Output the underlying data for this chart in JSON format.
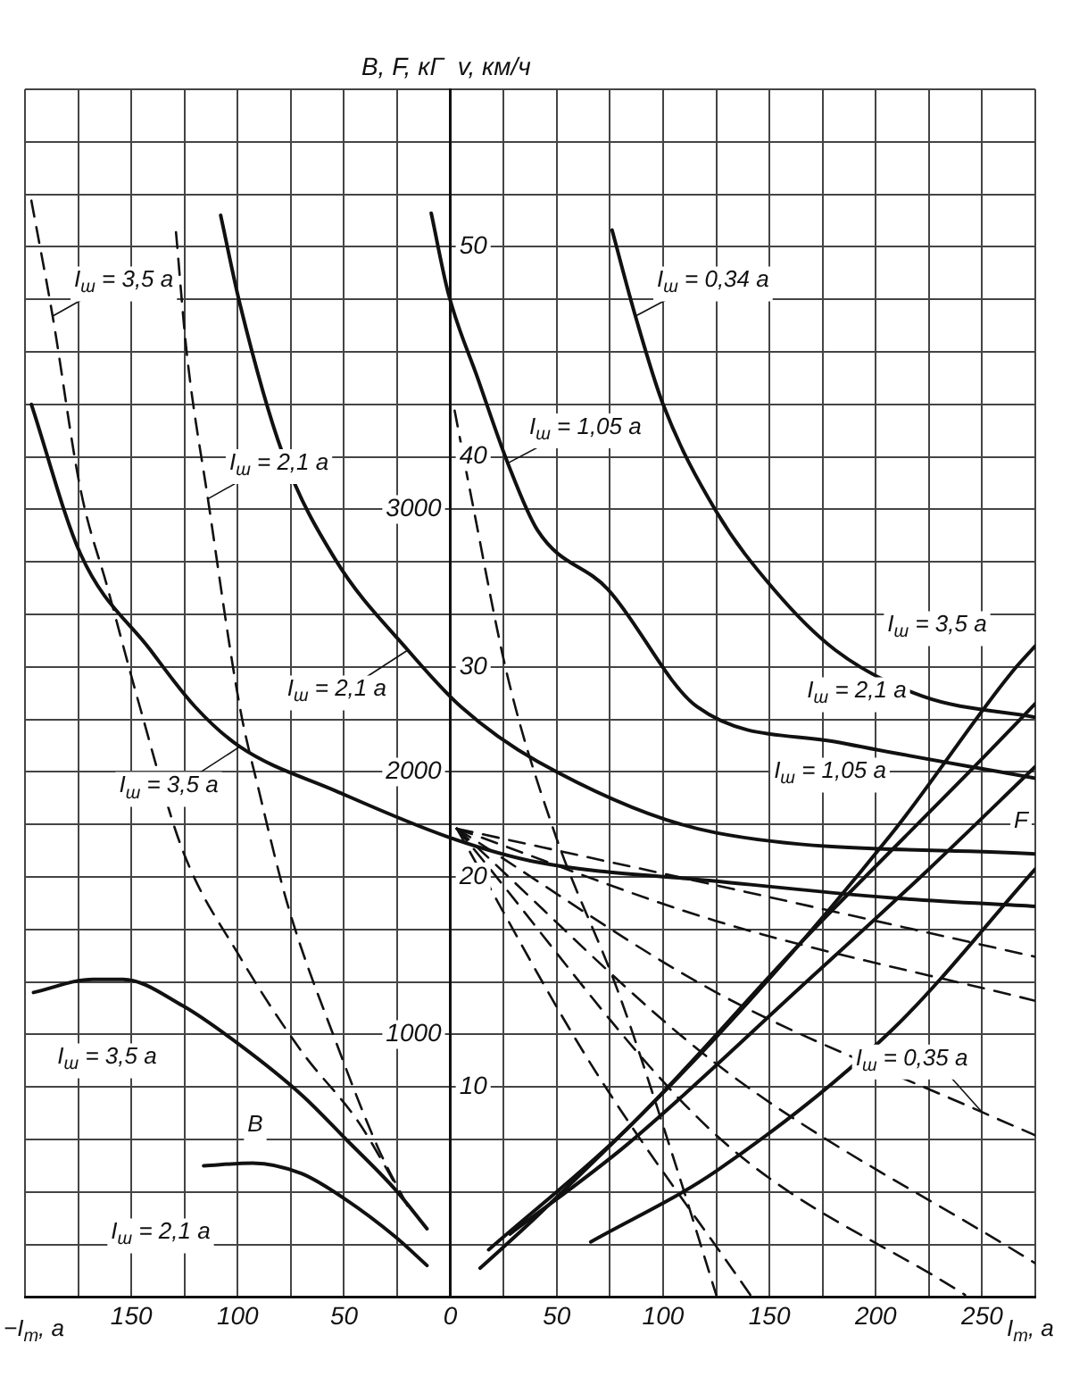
{
  "chart_data": {
    "type": "line",
    "marker": "none",
    "grid": true,
    "xlabel": "I$_{т}$, а",
    "ylabel": "v, км/ч",
    "y2label": "B, F, кГ",
    "xlim": [
      -200,
      275
    ],
    "xticks": [
      {
        "value": -200,
        "label": null
      },
      {
        "value": -175,
        "label": null
      },
      {
        "value": -150,
        "label": "150"
      },
      {
        "value": -125,
        "label": null
      },
      {
        "value": -100,
        "label": "100"
      },
      {
        "value": -75,
        "label": null
      },
      {
        "value": -50,
        "label": "50"
      },
      {
        "value": -25,
        "label": null
      },
      0,
      {
        "value": 25,
        "label": null
      },
      50,
      {
        "value": 75,
        "label": null
      },
      100,
      {
        "value": 125,
        "label": null
      },
      150,
      {
        "value": 175,
        "label": null
      },
      200,
      {
        "value": 225,
        "label": null
      },
      250,
      {
        "value": 275,
        "label": null
      }
    ],
    "ylim": [
      0,
      57.5
    ],
    "yticks": [
      {
        "value": 0,
        "label": null
      },
      {
        "value": 2.5,
        "label": null
      },
      {
        "value": 5,
        "label": null
      },
      {
        "value": 7.5,
        "label": null
      },
      10,
      {
        "value": 12.5,
        "label": null
      },
      {
        "value": 15,
        "label": null
      },
      {
        "value": 17.5,
        "label": null
      },
      20,
      {
        "value": 22.5,
        "label": null
      },
      {
        "value": 25,
        "label": null
      },
      {
        "value": 27.5,
        "label": null
      },
      30,
      {
        "value": 32.5,
        "label": null
      },
      {
        "value": 35,
        "label": null
      },
      {
        "value": 37.5,
        "label": null
      },
      40,
      {
        "value": 42.5,
        "label": null
      },
      {
        "value": 45,
        "label": null
      },
      {
        "value": 47.5,
        "label": null
      },
      50,
      {
        "value": 52.5,
        "label": null
      },
      {
        "value": 55,
        "label": null
      },
      {
        "value": 57.5,
        "label": null
      }
    ],
    "y2lim": [
      0,
      4600
    ],
    "y2ticks": [
      1000,
      2000,
      3000
    ],
    "annotations": [
      "−I$_{т}$, а",
      {
        "text": "I$_{ш}$ = 3,5 а",
        "x": -187,
        "y": 46.7
      },
      {
        "text": "I$_{ш}$ = 2,1 а",
        "x": -114,
        "y": 38
      },
      {
        "text": "I$_{ш}$ = 2,1 а",
        "x": -20,
        "y": 30.8
      },
      {
        "text": "I$_{ш}$ = 1,05 а",
        "x": 27,
        "y": 39.7
      },
      {
        "text": "I$_{ш}$ = 0,34 а",
        "x": 87,
        "y": 46.7
      },
      {
        "text": "I$_{ш}$ = 3,5 а",
        "x": -99,
        "y": 26.2
      },
      "I$_{ш}$ = 3,5 а",
      "I$_{ш}$ = 2,1 а",
      "B",
      "I$_{ш}$ = 3,5 а",
      "I$_{ш}$ = 2,1 а",
      "I$_{ш}$ = 1,05 а",
      "F",
      {
        "text": "I$_{ш}$ = 0,35 а",
        "x": 250,
        "y": 8.8
      }
    ],
    "series": [
      {
        "color": "#111111",
        "x": [
          76,
          87,
          100,
          125,
          152,
          181,
          222,
          275
        ],
        "values": [
          50.8,
          46.7,
          42.5,
          37.4,
          33.7,
          30.8,
          28.6,
          27.6
        ]
      },
      {
        "color": "#111111",
        "x": [
          -9,
          -1,
          13,
          27,
          41,
          74,
          116,
          183,
          275
        ],
        "values": [
          51.6,
          47.8,
          43.7,
          39.7,
          36.5,
          33.7,
          28.1,
          26.4,
          24.7
        ]
      },
      {
        "color": "#111111",
        "x": [
          -108,
          -99,
          -79,
          -54,
          -20,
          5,
          41,
          125,
          275
        ],
        "values": [
          51.5,
          47.3,
          40.2,
          35.1,
          30.8,
          28.1,
          25.5,
          22.1,
          21.1
        ]
      },
      {
        "color": "#111111",
        "x": [
          -197,
          -174,
          -141,
          -120,
          -99,
          -54,
          -1,
          41,
          125,
          208,
          275
        ],
        "values": [
          42.5,
          35.4,
          30.8,
          28.1,
          26.2,
          24.1,
          21.9,
          20.7,
          19.8,
          19,
          18.6
        ]
      },
      {
        "color": "#111111",
        "axis": "y2",
        "x": [
          -196,
          -168,
          -154,
          -126,
          -99,
          -70,
          -49,
          -26,
          -11
        ],
        "values": [
          1160,
          1210,
          1210,
          1110,
          960,
          770,
          600,
          410,
          260
        ]
      },
      {
        "color": "#111111",
        "axis": "y2",
        "x": [
          -116,
          -93,
          -70,
          -49,
          -26,
          -11
        ],
        "values": [
          500,
          510,
          470,
          370,
          230,
          120
        ]
      },
      {
        "color": "#111111",
        "axis": "y2",
        "x": [
          14,
          41,
          125,
          208,
          264,
          275
        ],
        "values": [
          110,
          310,
          990,
          1770,
          2380,
          2480
        ]
      },
      {
        "color": "#111111",
        "axis": "y2",
        "x": [
          18,
          83,
          166,
          250,
          275
        ],
        "values": [
          180,
          640,
          1360,
          2050,
          2260
        ]
      },
      {
        "color": "#111111",
        "axis": "y2",
        "x": [
          28,
          83,
          166,
          225,
          275
        ],
        "values": [
          240,
          580,
          1190,
          1630,
          2020
        ]
      },
      {
        "color": "#111111",
        "axis": "y2",
        "x": [
          66,
          125,
          208,
          275
        ],
        "values": [
          210,
          480,
          1020,
          1630
        ]
      },
      {
        "color": "#111111",
        "line_style": "dashed",
        "x": [
          -197,
          -187,
          -174,
          -161,
          -146,
          -126,
          -99,
          -70,
          -43,
          -26
        ],
        "values": [
          52.2,
          46.7,
          38.5,
          33.7,
          28.1,
          21.3,
          16.2,
          11.7,
          8.3,
          5.4
        ]
      },
      {
        "color": "#111111",
        "line_style": "dashed",
        "x": [
          -129,
          -124,
          -114,
          -99,
          -90,
          -76,
          -54,
          -34,
          -20
        ],
        "values": [
          50.7,
          45,
          38,
          28.1,
          24.1,
          18.5,
          12.2,
          7.1,
          4.3
        ]
      },
      {
        "color": "#111111",
        "line_style": "dashed",
        "x": [
          2,
          10,
          27,
          49,
          79,
          104,
          125
        ],
        "values": [
          42.2,
          38,
          29.5,
          22.1,
          14.5,
          6.9,
          0.1
        ]
      },
      {
        "color": "#111111",
        "line_style": "dashed",
        "x": [
          3,
          125,
          275
        ],
        "values": [
          22.3,
          19.6,
          16.2
        ]
      },
      {
        "color": "#111111",
        "line_style": "dashed",
        "x": [
          3,
          125,
          275
        ],
        "values": [
          22.3,
          17.9,
          14.1
        ]
      },
      {
        "color": "#111111",
        "line_style": "dashed",
        "x": [
          3,
          125,
          250,
          275
        ],
        "values": [
          22.3,
          14.5,
          8.8,
          7.7
        ]
      },
      {
        "color": "#111111",
        "line_style": "dashed",
        "x": [
          3,
          125,
          275
        ],
        "values": [
          22.3,
          11.1,
          1.6
        ]
      },
      {
        "color": "#111111",
        "line_style": "dashed",
        "x": [
          3,
          125,
          242
        ],
        "values": [
          22.3,
          7.7,
          0.1
        ]
      },
      {
        "color": "#111111",
        "line_style": "dashed",
        "x": [
          3,
          66,
          141
        ],
        "values": [
          22.3,
          11.1,
          0.1
        ]
      }
    ]
  }
}
